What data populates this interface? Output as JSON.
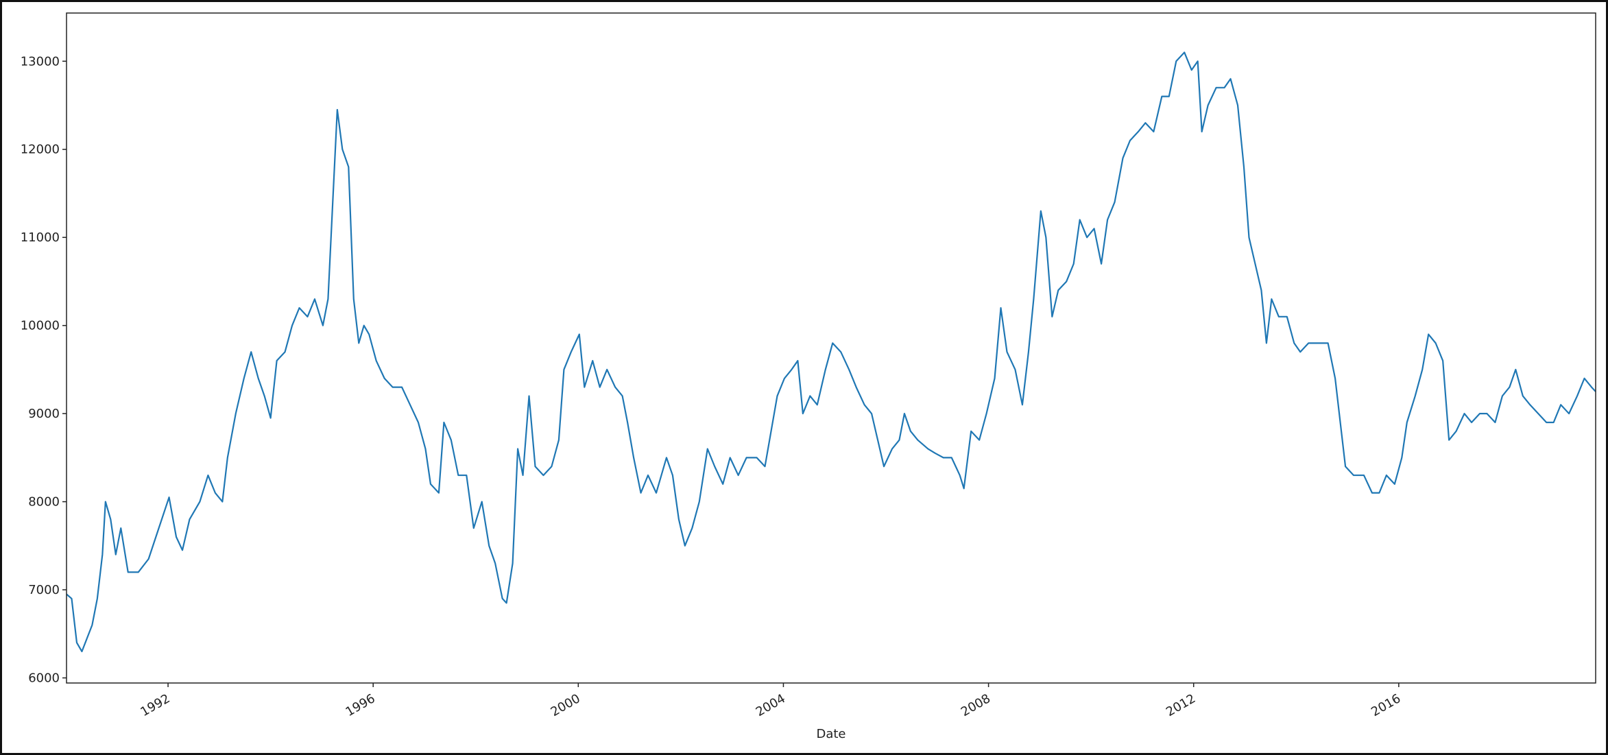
{
  "chart_data": {
    "type": "line",
    "xlabel": "Date",
    "color": "#1f77b4",
    "xlim": [
      1990.02,
      2019.84
    ],
    "xticks": [
      1992,
      1996,
      2000,
      2004,
      2008,
      2012,
      2016
    ],
    "ylim": [
      5942,
      13547
    ],
    "yticks": [
      6000,
      7000,
      8000,
      9000,
      10000,
      11000,
      12000,
      13000
    ],
    "x": [
      1990.02,
      1990.12,
      1990.22,
      1990.32,
      1990.52,
      1990.62,
      1990.72,
      1990.78,
      1990.88,
      1990.98,
      1991.08,
      1991.22,
      1991.42,
      1991.62,
      1991.82,
      1992.02,
      1992.16,
      1992.28,
      1992.42,
      1992.62,
      1992.78,
      1992.92,
      1993.06,
      1993.16,
      1993.32,
      1993.48,
      1993.62,
      1993.76,
      1993.88,
      1994.0,
      1994.12,
      1994.28,
      1994.42,
      1994.56,
      1994.72,
      1994.86,
      1995.02,
      1995.12,
      1995.22,
      1995.3,
      1995.4,
      1995.52,
      1995.62,
      1995.72,
      1995.82,
      1995.92,
      1996.06,
      1996.22,
      1996.38,
      1996.56,
      1996.72,
      1996.88,
      1997.02,
      1997.12,
      1997.28,
      1997.38,
      1997.52,
      1997.66,
      1997.82,
      1997.96,
      1998.12,
      1998.26,
      1998.38,
      1998.52,
      1998.6,
      1998.72,
      1998.82,
      1998.92,
      1999.04,
      1999.16,
      1999.32,
      1999.48,
      1999.62,
      1999.72,
      1999.86,
      2000.02,
      2000.12,
      2000.28,
      2000.42,
      2000.56,
      2000.72,
      2000.86,
      2000.96,
      2001.08,
      2001.22,
      2001.36,
      2001.52,
      2001.72,
      2001.84,
      2001.96,
      2002.08,
      2002.22,
      2002.36,
      2002.52,
      2002.66,
      2002.82,
      2002.96,
      2003.12,
      2003.28,
      2003.48,
      2003.64,
      2003.76,
      2003.88,
      2004.02,
      2004.16,
      2004.28,
      2004.38,
      2004.52,
      2004.66,
      2004.82,
      2004.96,
      2005.12,
      2005.28,
      2005.42,
      2005.58,
      2005.72,
      2005.84,
      2005.96,
      2006.12,
      2006.26,
      2006.36,
      2006.48,
      2006.62,
      2006.82,
      2006.96,
      2007.12,
      2007.28,
      2007.44,
      2007.52,
      2007.66,
      2007.82,
      2007.96,
      2008.12,
      2008.24,
      2008.36,
      2008.52,
      2008.66,
      2008.78,
      2008.88,
      2009.02,
      2009.12,
      2009.24,
      2009.36,
      2009.52,
      2009.66,
      2009.78,
      2009.92,
      2010.06,
      2010.2,
      2010.32,
      2010.46,
      2010.62,
      2010.76,
      2010.92,
      2011.06,
      2011.22,
      2011.38,
      2011.52,
      2011.66,
      2011.82,
      2011.96,
      2012.08,
      2012.16,
      2012.28,
      2012.44,
      2012.6,
      2012.72,
      2012.86,
      2012.98,
      2013.08,
      2013.2,
      2013.32,
      2013.42,
      2013.52,
      2013.66,
      2013.82,
      2013.96,
      2014.08,
      2014.24,
      2014.42,
      2014.62,
      2014.76,
      2014.88,
      2014.96,
      2015.12,
      2015.32,
      2015.48,
      2015.62,
      2015.76,
      2015.92,
      2016.06,
      2016.16,
      2016.32,
      2016.46,
      2016.58,
      2016.72,
      2016.86,
      2016.98,
      2017.12,
      2017.28,
      2017.42,
      2017.58,
      2017.72,
      2017.88,
      2018.02,
      2018.16,
      2018.28,
      2018.42,
      2018.56,
      2018.72,
      2018.88,
      2019.02,
      2019.16,
      2019.32,
      2019.48,
      2019.62,
      2019.76,
      2019.84
    ],
    "values": [
      6950,
      6900,
      6400,
      6300,
      6600,
      6900,
      7400,
      8000,
      7800,
      7400,
      7700,
      7200,
      7200,
      7350,
      7700,
      8050,
      7600,
      7450,
      7800,
      8000,
      8300,
      8100,
      8000,
      8500,
      9000,
      9400,
      9700,
      9400,
      9200,
      8950,
      9600,
      9700,
      10000,
      10200,
      10100,
      10300,
      10000,
      10300,
      11500,
      12450,
      12000,
      11800,
      10300,
      9800,
      10000,
      9900,
      9600,
      9400,
      9300,
      9300,
      9100,
      8900,
      8600,
      8200,
      8100,
      8900,
      8700,
      8300,
      8300,
      7700,
      8000,
      7500,
      7300,
      6900,
      6850,
      7300,
      8600,
      8300,
      9200,
      8400,
      8300,
      8400,
      8700,
      9500,
      9700,
      9900,
      9300,
      9600,
      9300,
      9500,
      9300,
      9200,
      8900,
      8500,
      8100,
      8300,
      8100,
      8500,
      8300,
      7800,
      7500,
      7700,
      8000,
      8600,
      8400,
      8200,
      8500,
      8300,
      8500,
      8500,
      8400,
      8800,
      9200,
      9400,
      9500,
      9600,
      9000,
      9200,
      9100,
      9500,
      9800,
      9700,
      9500,
      9300,
      9100,
      9000,
      8700,
      8400,
      8600,
      8700,
      9000,
      8800,
      8700,
      8600,
      8550,
      8500,
      8500,
      8300,
      8150,
      8800,
      8700,
      9000,
      9400,
      10200,
      9700,
      9500,
      9100,
      9700,
      10300,
      11300,
      11000,
      10100,
      10400,
      10500,
      10700,
      11200,
      11000,
      11100,
      10700,
      11200,
      11400,
      11900,
      12100,
      12200,
      12300,
      12200,
      12600,
      12600,
      13000,
      13100,
      12900,
      13000,
      12200,
      12500,
      12700,
      12700,
      12800,
      12500,
      11800,
      11000,
      10700,
      10400,
      9800,
      10300,
      10100,
      10100,
      9800,
      9700,
      9800,
      9800,
      9800,
      9400,
      8800,
      8400,
      8300,
      8300,
      8100,
      8100,
      8300,
      8200,
      8500,
      8900,
      9200,
      9500,
      9900,
      9800,
      9600,
      8700,
      8800,
      9000,
      8900,
      9000,
      9000,
      8900,
      9200,
      9300,
      9500,
      9200,
      9100,
      9000,
      8900,
      8900,
      9100,
      9000,
      9200,
      9400,
      9300,
      9250
    ]
  }
}
